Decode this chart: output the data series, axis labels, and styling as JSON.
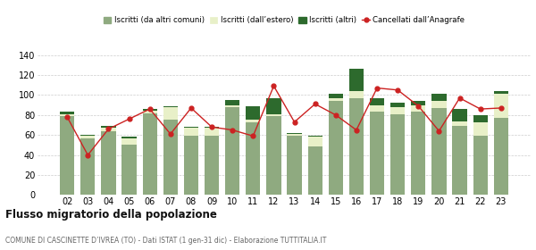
{
  "years": [
    "02",
    "03",
    "04",
    "05",
    "06",
    "07",
    "08",
    "09",
    "10",
    "11",
    "12",
    "13",
    "14",
    "15",
    "16",
    "17",
    "18",
    "19",
    "20",
    "21",
    "22",
    "23"
  ],
  "iscritti_altri_comuni": [
    79,
    57,
    64,
    50,
    82,
    75,
    59,
    59,
    88,
    73,
    79,
    59,
    49,
    94,
    97,
    83,
    81,
    83,
    87,
    69,
    59,
    77
  ],
  "iscritti_estero": [
    2,
    2,
    3,
    7,
    2,
    13,
    8,
    8,
    2,
    2,
    2,
    2,
    9,
    3,
    7,
    7,
    7,
    7,
    7,
    5,
    14,
    24
  ],
  "iscritti_altri": [
    2,
    1,
    2,
    1,
    2,
    1,
    1,
    1,
    5,
    14,
    16,
    1,
    1,
    4,
    22,
    7,
    4,
    4,
    7,
    12,
    7,
    3
  ],
  "cancellati": [
    78,
    40,
    66,
    76,
    86,
    61,
    87,
    68,
    65,
    59,
    109,
    73,
    91,
    80,
    65,
    107,
    105,
    89,
    64,
    97,
    86,
    87
  ],
  "color_altri_comuni": "#8faa80",
  "color_estero": "#e8f0c8",
  "color_altri": "#2d6a2d",
  "color_cancellati": "#cc2222",
  "title": "Flusso migratorio della popolazione",
  "subtitle": "COMUNE DI CASCINETTE D’IVREA (TO) - Dati ISTAT (1 gen-31 dic) - Elaborazione TUTTITALIA.IT",
  "legend_labels": [
    "Iscritti (da altri comuni)",
    "Iscritti (dall’estero)",
    "Iscritti (altri)",
    "Cancellati dall’Anagrafe"
  ],
  "ylim": [
    0,
    145
  ],
  "yticks": [
    0,
    20,
    40,
    60,
    80,
    100,
    120,
    140
  ],
  "background_color": "#ffffff",
  "grid_color": "#cccccc"
}
